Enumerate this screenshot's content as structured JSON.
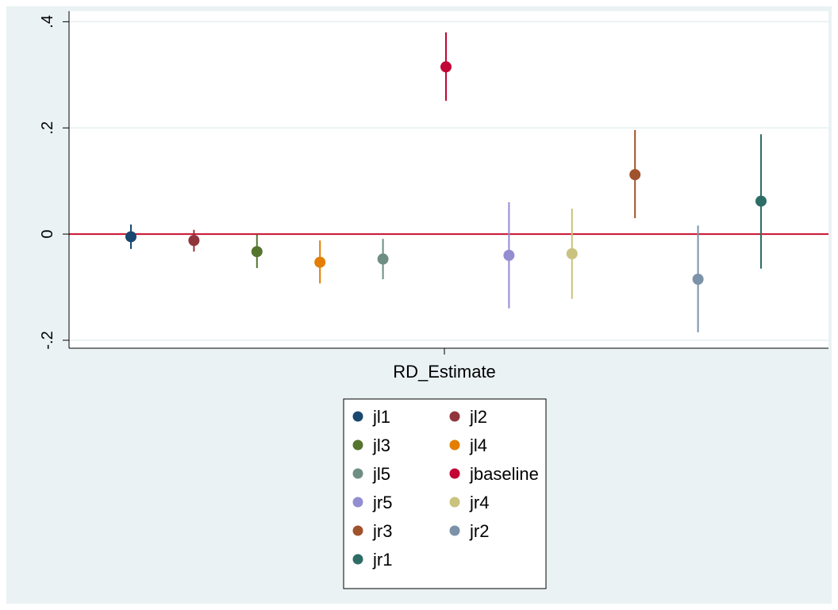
{
  "chart_data": {
    "type": "scatter",
    "subtype": "coefficient-plot-with-confidence-intervals",
    "title": "",
    "xlabel": "",
    "ylabel": "",
    "categories": [
      "RD_Estimate"
    ],
    "ylim": [
      -0.215,
      0.42
    ],
    "yticks": [
      {
        "value": -0.2,
        "label": "-.2"
      },
      {
        "value": 0,
        "label": "0"
      },
      {
        "value": 0.2,
        "label": ".2"
      },
      {
        "value": 0.4,
        "label": ".4"
      }
    ],
    "grid": true,
    "reference_line": {
      "value": 0,
      "color": "#c8102e"
    },
    "legend_placement": "bottom",
    "series": [
      {
        "name": "jl1",
        "color": "#1a476f",
        "estimate": -0.005,
        "ci_low": -0.028,
        "ci_high": 0.018
      },
      {
        "name": "jl2",
        "color": "#90353b",
        "estimate": -0.012,
        "ci_low": -0.033,
        "ci_high": 0.008
      },
      {
        "name": "jl3",
        "color": "#55752f",
        "estimate": -0.033,
        "ci_low": -0.064,
        "ci_high": -0.001
      },
      {
        "name": "jl4",
        "color": "#e37e00",
        "estimate": -0.053,
        "ci_low": -0.093,
        "ci_high": -0.012
      },
      {
        "name": "jl5",
        "color": "#6e8e84",
        "estimate": -0.047,
        "ci_low": -0.085,
        "ci_high": -0.009
      },
      {
        "name": "jbaseline",
        "color": "#c10534",
        "estimate": 0.315,
        "ci_low": 0.251,
        "ci_high": 0.38
      },
      {
        "name": "jr5",
        "color": "#938dd2",
        "estimate": -0.04,
        "ci_low": -0.14,
        "ci_high": 0.06
      },
      {
        "name": "jr4",
        "color": "#cac27e",
        "estimate": -0.037,
        "ci_low": -0.122,
        "ci_high": 0.048
      },
      {
        "name": "jr3",
        "color": "#a0522d",
        "estimate": 0.112,
        "ci_low": 0.03,
        "ci_high": 0.196
      },
      {
        "name": "jr2",
        "color": "#7b92a8",
        "estimate": -0.085,
        "ci_low": -0.185,
        "ci_high": 0.016
      },
      {
        "name": "jr1",
        "color": "#2d6d66",
        "estimate": 0.062,
        "ci_low": -0.065,
        "ci_high": 0.188
      }
    ]
  }
}
